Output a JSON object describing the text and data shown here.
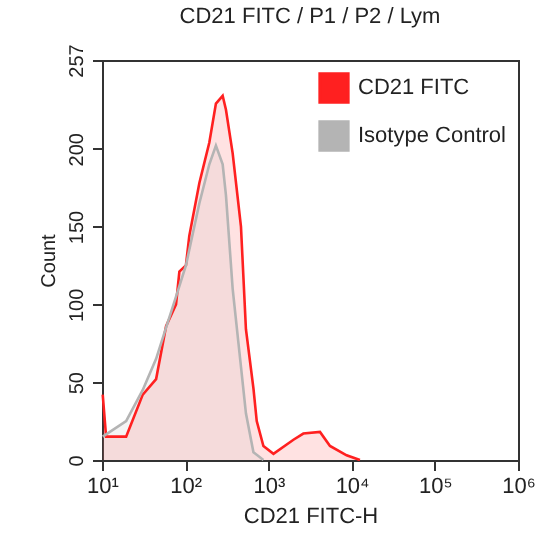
{
  "chart_data": {
    "type": "area",
    "title": "CD21 FITC / P1 / P2 / Lym",
    "xlabel": "CD21 FITC-H",
    "ylabel": "Count",
    "log": "x",
    "xlim": [
      10,
      1000000
    ],
    "xticks": [
      {
        "value": 10,
        "label": "10¹"
      },
      {
        "value": 100,
        "label": "10²"
      },
      {
        "value": 1000,
        "label": "10³"
      },
      {
        "value": 10000,
        "label": "10⁴"
      },
      {
        "value": 100000,
        "label": "10⁵"
      },
      {
        "value": 1000000,
        "label": "10⁶"
      }
    ],
    "ylim": [
      0,
      257
    ],
    "yticks": [
      0,
      50,
      100,
      150,
      200,
      257
    ],
    "grid": false,
    "legend": "top right",
    "series": [
      {
        "name": "CD21 FITC",
        "color": "#ff2020",
        "x": [
          10.2,
          11.2,
          19.5,
          30.9,
          44.7,
          58.9,
          77.6,
          85.1,
          102,
          112,
          148,
          195,
          234,
          282,
          309,
          372,
          468,
          537,
          661,
          724,
          871,
          1150,
          2000,
          2630,
          4170,
          5500,
          8710,
          12600
        ],
        "values": [
          42,
          15,
          15,
          42,
          52,
          86,
          100,
          121,
          125,
          144,
          178,
          204,
          229,
          234,
          225,
          197,
          150,
          84,
          46,
          25,
          9,
          4,
          13,
          17,
          18,
          9,
          3,
          0
        ]
      },
      {
        "name": "Isotype Control",
        "color": "#b4b4b4",
        "x": [
          10.2,
          19.5,
          30.9,
          44.7,
          58.9,
          77.6,
          102,
          148,
          195,
          234,
          282,
          309,
          372,
          468,
          537,
          661,
          871
        ],
        "values": [
          15,
          25,
          45,
          65,
          85,
          105,
          125,
          165,
          190,
          202,
          190,
          170,
          110,
          60,
          30,
          5,
          0
        ]
      }
    ]
  }
}
